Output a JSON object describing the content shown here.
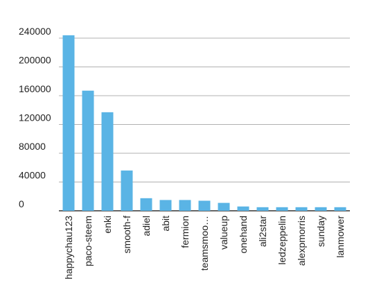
{
  "chart_data": {
    "type": "bar",
    "title": "",
    "xlabel": "",
    "ylabel": "",
    "categories": [
      "happychau123",
      "paco-steem",
      "enki",
      "smooth-f",
      "adiel",
      "abit",
      "fermion",
      "teamsmoo…",
      "valueup",
      "onehand",
      "ali2star",
      "ledzeppelin",
      "alexpmorris",
      "sunday",
      "lanmower"
    ],
    "values": [
      244000,
      167000,
      137000,
      56000,
      17500,
      15000,
      15000,
      14000,
      11000,
      6000,
      5000,
      5000,
      5000,
      5000,
      5000
    ],
    "ylim": [
      0,
      240000
    ],
    "yticks": [
      0,
      40000,
      80000,
      120000,
      160000,
      200000,
      240000
    ],
    "ytick_labels": [
      "0",
      "40000",
      "80000",
      "120000",
      "160000",
      "200000",
      "240000"
    ],
    "grid": true,
    "legend": "none",
    "bar_color": "#5ab4e5"
  }
}
